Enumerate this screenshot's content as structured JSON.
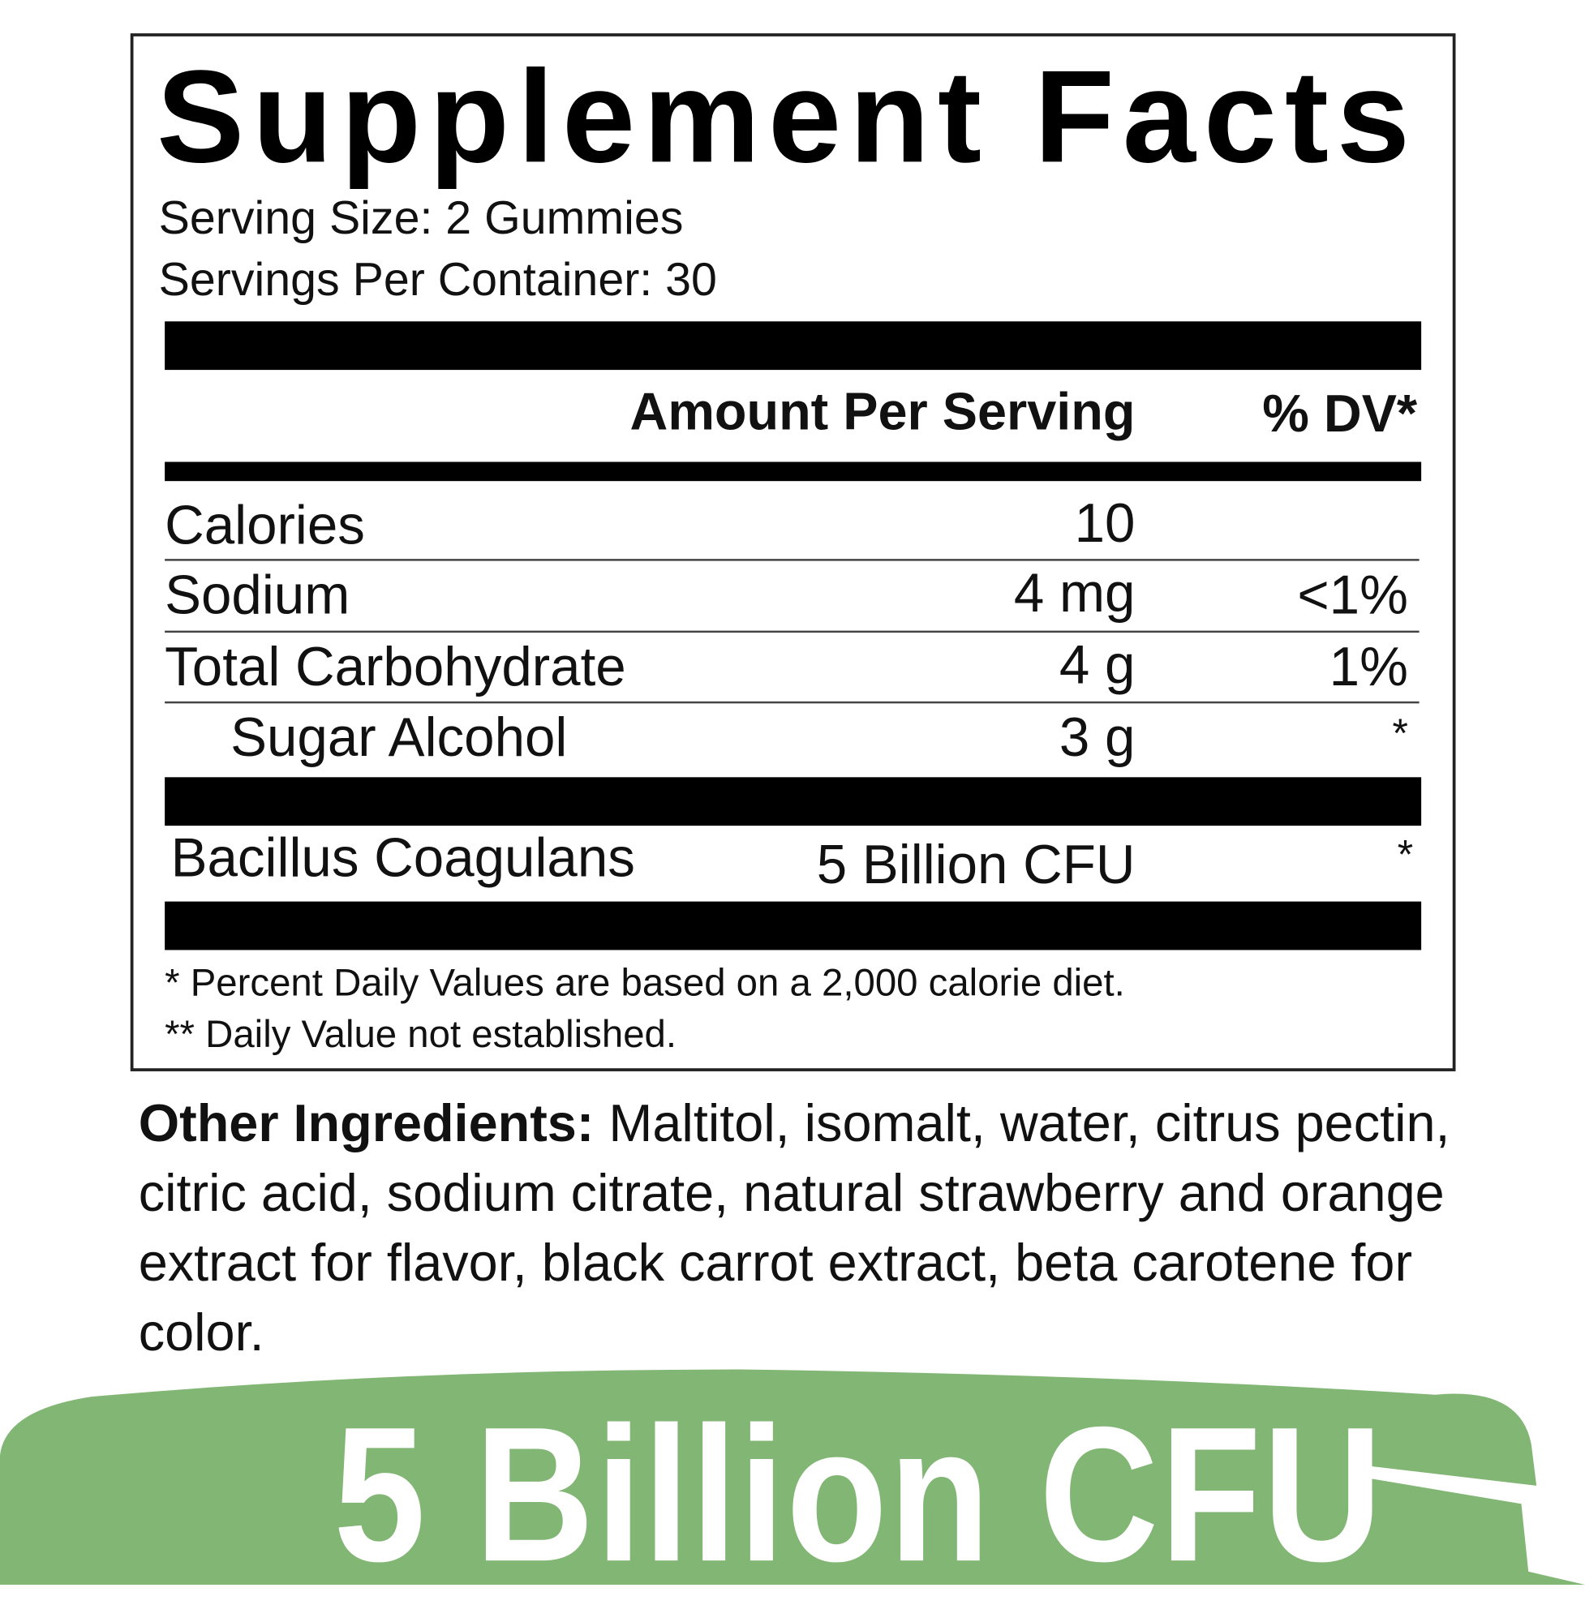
{
  "title": "Supplement Facts",
  "serving_size": "Serving Size: 2 Gummies",
  "servings_per_container": "Servings Per Container: 30",
  "header": {
    "amount": "Amount Per Serving",
    "dv": "% DV*"
  },
  "rows": [
    {
      "name": "Calories",
      "amount": "10",
      "dv": ""
    },
    {
      "name": "Sodium",
      "amount": "4 mg",
      "dv": "<1%"
    },
    {
      "name": "Total Carbohydrate",
      "amount": "4 g",
      "dv": "1%"
    },
    {
      "name": "Sugar Alcohol",
      "amount": "3 g",
      "dv": "*"
    }
  ],
  "probiotic": {
    "name": "Bacillus Coagulans",
    "amount": "5 Billion CFU",
    "dv": "*"
  },
  "footnotes": [
    "*  Percent Daily Values are based on a 2,000 calorie diet.",
    "** Daily Value not established."
  ],
  "other_ingredients": {
    "label": "Other Ingredients:",
    "text": " Maltitol, isomalt, water, citrus pectin, citric acid, sodium citrate, natural strawberry and orange extract for flavor, black carrot extract, beta carotene for color."
  },
  "banner": {
    "text": "5 Billion CFU",
    "color": "#82b674"
  }
}
